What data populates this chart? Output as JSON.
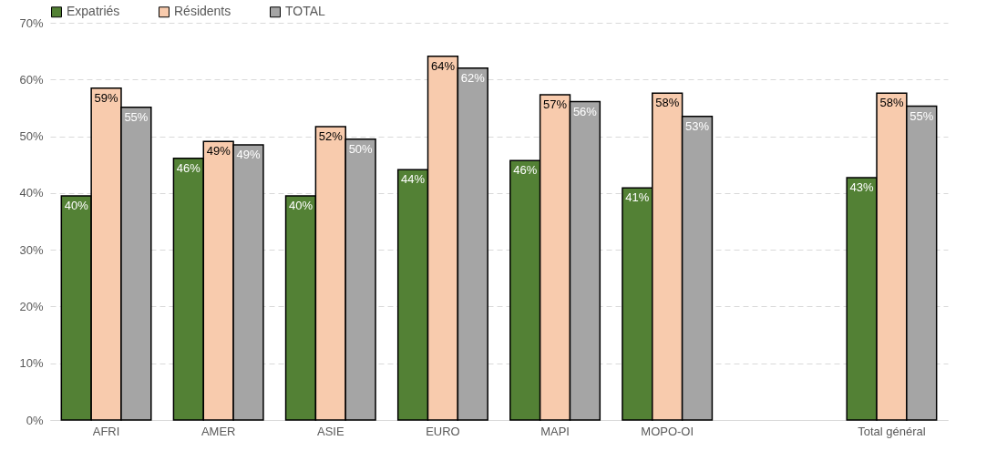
{
  "chart_data": {
    "type": "bar",
    "categories": [
      "AFRI",
      "AMER",
      "ASIE",
      "EURO",
      "MAPI",
      "MOPO-OI",
      null,
      "Total général"
    ],
    "series": [
      {
        "name": "Expatriés",
        "color": "#538135",
        "values": [
          39.5,
          46.1,
          39.5,
          44.1,
          45.7,
          40.9,
          null,
          42.7
        ],
        "value_labels": [
          "40%",
          "46%",
          "40%",
          "44%",
          "46%",
          "41%",
          null,
          "43%"
        ]
      },
      {
        "name": "Résidents",
        "color": "#f8cbad",
        "values": [
          58.5,
          49.1,
          51.7,
          64.1,
          57.3,
          57.6,
          null,
          57.6
        ],
        "value_labels": [
          "59%",
          "49%",
          "52%",
          "64%",
          "57%",
          "58%",
          null,
          "58%"
        ]
      },
      {
        "name": "TOTAL",
        "color": "#a5a5a5",
        "values": [
          55.1,
          48.5,
          49.5,
          62.0,
          56.1,
          53.5,
          null,
          55.3
        ],
        "value_labels": [
          "55%",
          "49%",
          "50%",
          "62%",
          "56%",
          "53%",
          null,
          "55%"
        ]
      }
    ],
    "ylim": [
      0,
      70
    ],
    "yticks": [
      {
        "value": 0,
        "label": "0%"
      },
      {
        "value": 10,
        "label": "10%"
      },
      {
        "value": 20,
        "label": "20%"
      },
      {
        "value": 30,
        "label": "30%"
      },
      {
        "value": 40,
        "label": "40%"
      },
      {
        "value": 50,
        "label": "50%"
      },
      {
        "value": 60,
        "label": "60%"
      },
      {
        "value": 70,
        "label": "70%"
      }
    ],
    "grid": "y",
    "legend": "top"
  }
}
